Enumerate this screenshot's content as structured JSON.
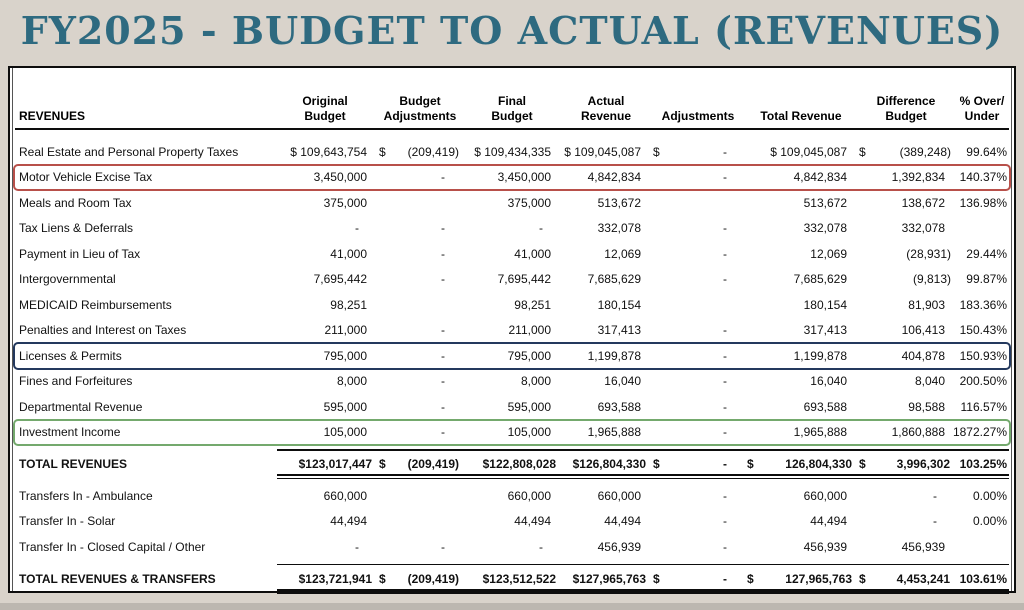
{
  "title": "FY2025 - BUDGET TO ACTUAL (REVENUES)",
  "colors": {
    "background": "#d9d3cb",
    "title_text": "#2e6a80",
    "highlight_red": "#b8504a",
    "highlight_navy": "#24395e",
    "highlight_green": "#74a96d",
    "table_border": "#0d0d0d"
  },
  "table": {
    "columns": [
      "REVENUES",
      "Original\nBudget",
      "Budget\nAdjustments",
      "Final\nBudget",
      "Actual\nRevenue",
      "Adjustments",
      "Total Revenue",
      "Difference\nBudget",
      "% Over/\nUnder"
    ],
    "rows": [
      {
        "type": "data",
        "label": "Real Estate and Personal Property Taxes",
        "cells": [
          "$ 109,643,754",
          "$|(209,419)",
          "$ 109,434,335",
          "$ 109,045,087",
          "$|-",
          "$ 109,045,087",
          "$|(389,248)",
          "99.64%"
        ]
      },
      {
        "type": "data",
        "label": "Motor Vehicle Excise Tax",
        "highlight": "red",
        "cells": [
          "3,450,000",
          "-",
          "3,450,000",
          "4,842,834",
          "-",
          "4,842,834",
          "1,392,834",
          "140.37%"
        ]
      },
      {
        "type": "data",
        "label": "Meals and Room Tax",
        "cells": [
          "375,000",
          "",
          "375,000",
          "513,672",
          "",
          "513,672",
          "138,672",
          "136.98%"
        ]
      },
      {
        "type": "data",
        "label": "Tax Liens & Deferrals",
        "cells": [
          "-",
          "-",
          "-",
          "332,078",
          "-",
          "332,078",
          "332,078",
          ""
        ]
      },
      {
        "type": "data",
        "label": "Payment in Lieu of Tax",
        "cells": [
          "41,000",
          "-",
          "41,000",
          "12,069",
          "-",
          "12,069",
          "(28,931)",
          "29.44%"
        ]
      },
      {
        "type": "data",
        "label": "Intergovernmental",
        "cells": [
          "7,695,442",
          "-",
          "7,695,442",
          "7,685,629",
          "-",
          "7,685,629",
          "(9,813)",
          "99.87%"
        ]
      },
      {
        "type": "data",
        "label": "MEDICAID Reimbursements",
        "cells": [
          "98,251",
          "",
          "98,251",
          "180,154",
          "",
          "180,154",
          "81,903",
          "183.36%"
        ]
      },
      {
        "type": "data",
        "label": "Penalties and Interest on Taxes",
        "cells": [
          "211,000",
          "-",
          "211,000",
          "317,413",
          "-",
          "317,413",
          "106,413",
          "150.43%"
        ]
      },
      {
        "type": "data",
        "label": "Licenses & Permits",
        "highlight": "navy",
        "cells": [
          "795,000",
          "-",
          "795,000",
          "1,199,878",
          "-",
          "1,199,878",
          "404,878",
          "150.93%"
        ]
      },
      {
        "type": "data",
        "label": "Fines and Forfeitures",
        "cells": [
          "8,000",
          "-",
          "8,000",
          "16,040",
          "-",
          "16,040",
          "8,040",
          "200.50%"
        ]
      },
      {
        "type": "data",
        "label": "Departmental Revenue",
        "cells": [
          "595,000",
          "-",
          "595,000",
          "693,588",
          "-",
          "693,588",
          "98,588",
          "116.57%"
        ]
      },
      {
        "type": "data",
        "label": "Investment Income",
        "highlight": "green",
        "cells": [
          "105,000",
          "-",
          "105,000",
          "1,965,888",
          "-",
          "1,965,888",
          "1,860,888",
          "1872.27%"
        ]
      },
      {
        "type": "spacer"
      },
      {
        "type": "total",
        "label": "TOTAL REVENUES",
        "cells": [
          "$123,017,447",
          "$|(209,419)",
          "$122,808,028",
          "$126,804,330",
          "$|-",
          "$|126,804,330",
          "$|3,996,302",
          "103.25%"
        ]
      },
      {
        "type": "spacer"
      },
      {
        "type": "data",
        "label": "Transfers In - Ambulance",
        "cells": [
          "660,000",
          "",
          "660,000",
          "660,000",
          "-",
          "660,000",
          "-",
          "0.00%"
        ]
      },
      {
        "type": "data",
        "label": "Transfer In - Solar",
        "cells": [
          "44,494",
          "",
          "44,494",
          "44,494",
          "-",
          "44,494",
          "-",
          "0.00%"
        ]
      },
      {
        "type": "data",
        "label": "Transfer In - Closed Capital / Other",
        "cells": [
          "-",
          "-",
          "-",
          "456,939",
          "-",
          "456,939",
          "456,939",
          ""
        ]
      },
      {
        "type": "spacer"
      },
      {
        "type": "total",
        "label": "TOTAL REVENUES & TRANSFERS",
        "cells": [
          "$123,721,941",
          "$|(209,419)",
          "$123,512,522",
          "$127,965,763",
          "$|-",
          "$|127,965,763",
          "$|4,453,241",
          "103.61%"
        ]
      }
    ]
  }
}
